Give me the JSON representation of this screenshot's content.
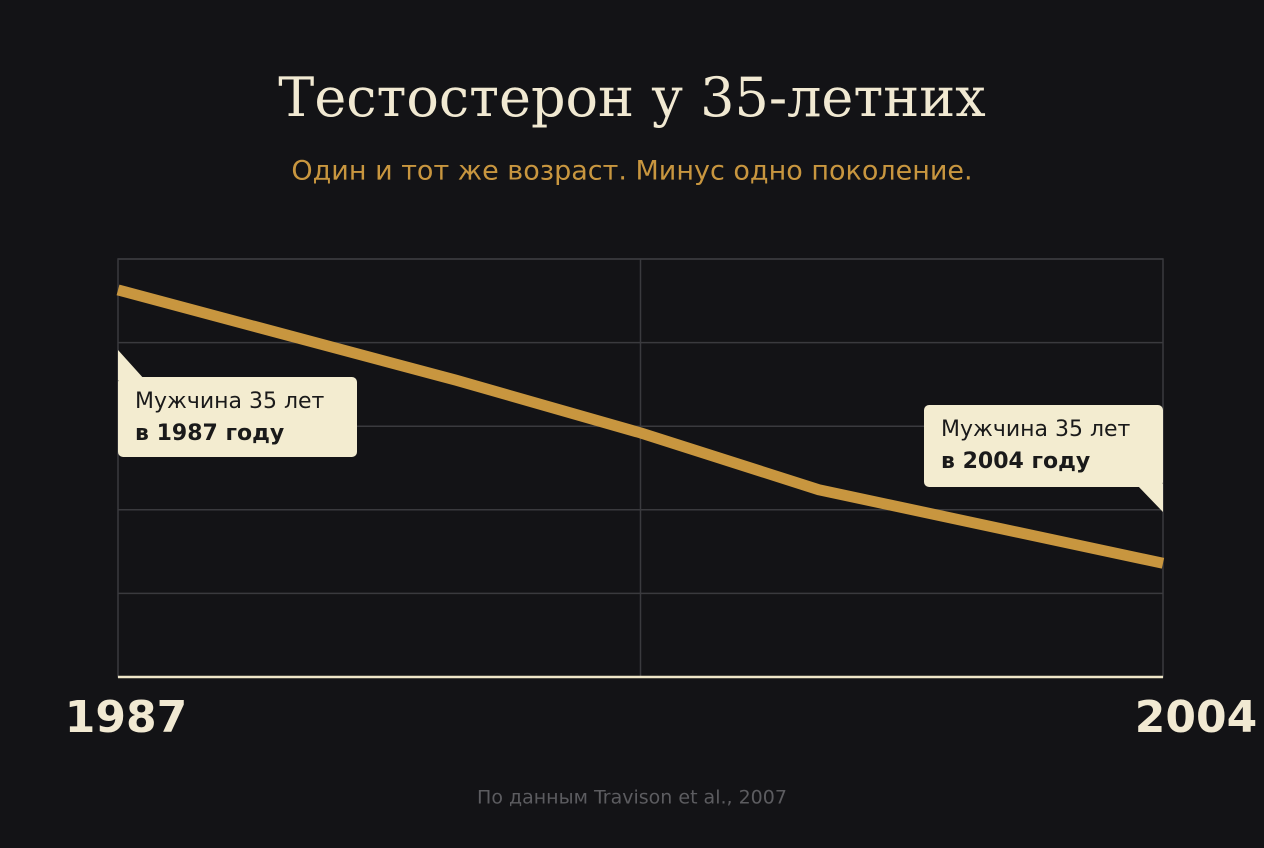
{
  "chart_data": {
    "type": "line",
    "title": "Тестостерон у 35-летних",
    "subtitle": "Один и тот же возраст. Минус одно поколение.",
    "x": [
      1987,
      1992.5,
      1995.5,
      1998.4,
      2004
    ],
    "values": [
      4.63,
      3.55,
      2.92,
      2.24,
      1.36
    ],
    "color": "#c8963f",
    "xlim": [
      1987,
      2004
    ],
    "xticks": [
      1987,
      2004
    ],
    "xgrid": [
      1995.5
    ],
    "ylim": [
      0,
      5
    ],
    "ygrid": [
      0,
      1,
      2,
      3,
      4,
      5
    ],
    "annotations": [
      {
        "text": "Мужчина 35 лет",
        "bold": "в 1987 году"
      },
      {
        "text": "Мужчина 35 лет",
        "bold": "в 2004 году"
      }
    ],
    "source": "По данным Travison et al., 2007"
  }
}
